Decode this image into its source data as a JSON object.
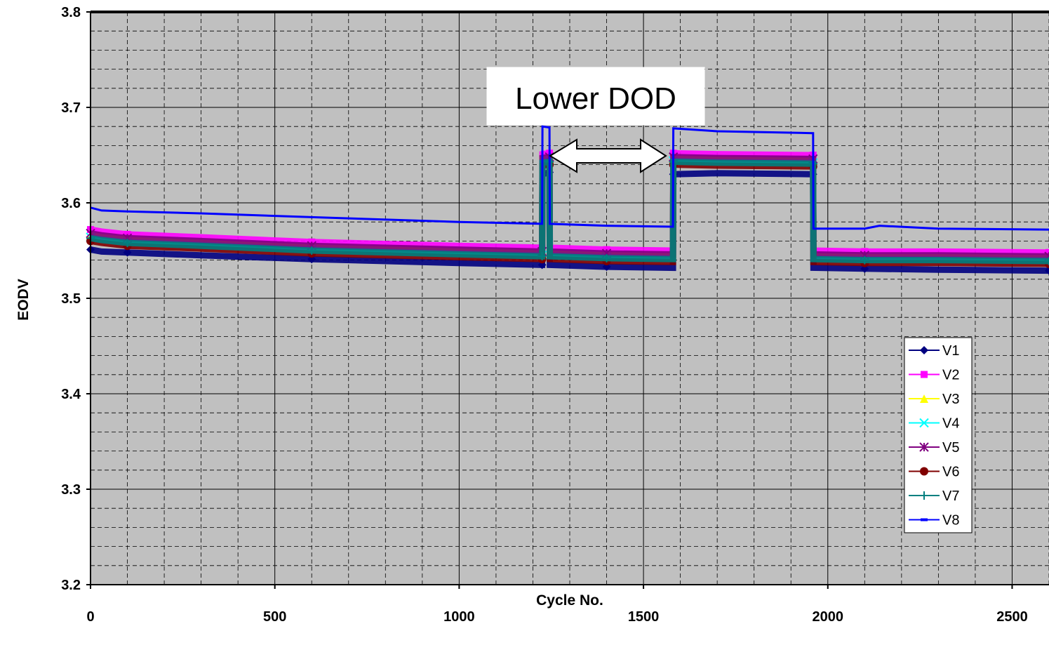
{
  "chart_data": {
    "type": "line",
    "title": "",
    "xlabel": "Cycle No.",
    "ylabel": "EODV",
    "xlim": [
      0,
      2600
    ],
    "ylim": [
      3.2,
      3.8
    ],
    "x_ticks": [
      "0",
      "500",
      "1000",
      "1500",
      "2000",
      "2500"
    ],
    "y_ticks": [
      "3.2",
      "3.3",
      "3.4",
      "3.5",
      "3.6",
      "3.7",
      "3.8"
    ],
    "grid": true,
    "plot_background": "#c0c0c0",
    "legend_position": "right-middle",
    "annotation": {
      "text": "Lower DOD",
      "arrow": "double-headed",
      "x_range": [
        1250,
        1560
      ],
      "y": 3.647
    },
    "series": [
      {
        "name": "V1",
        "color": "#000080",
        "marker": "diamond",
        "points": [
          [
            0,
            3.551
          ],
          [
            30,
            3.549
          ],
          [
            100,
            3.548
          ],
          [
            300,
            3.545
          ],
          [
            600,
            3.541
          ],
          [
            1000,
            3.537
          ],
          [
            1225,
            3.535
          ],
          [
            1226,
            3.63
          ],
          [
            1245,
            3.632
          ],
          [
            1246,
            3.535
          ],
          [
            1400,
            3.533
          ],
          [
            1580,
            3.532
          ],
          [
            1581,
            3.63
          ],
          [
            1700,
            3.631
          ],
          [
            1960,
            3.63
          ],
          [
            1961,
            3.532
          ],
          [
            2100,
            3.531
          ],
          [
            2300,
            3.53
          ],
          [
            2600,
            3.529
          ]
        ]
      },
      {
        "name": "V2",
        "color": "#ff00ff",
        "marker": "square",
        "points": [
          [
            0,
            3.572
          ],
          [
            30,
            3.57
          ],
          [
            100,
            3.567
          ],
          [
            300,
            3.564
          ],
          [
            600,
            3.559
          ],
          [
            1000,
            3.555
          ],
          [
            1225,
            3.553
          ],
          [
            1226,
            3.651
          ],
          [
            1245,
            3.652
          ],
          [
            1246,
            3.553
          ],
          [
            1400,
            3.551
          ],
          [
            1580,
            3.55
          ],
          [
            1581,
            3.652
          ],
          [
            1700,
            3.651
          ],
          [
            1960,
            3.65
          ],
          [
            1961,
            3.55
          ],
          [
            2100,
            3.549
          ],
          [
            2300,
            3.549
          ],
          [
            2600,
            3.548
          ]
        ]
      },
      {
        "name": "V3",
        "color": "#ffff00",
        "marker": "triangle",
        "points": [
          [
            0,
            3.566
          ],
          [
            30,
            3.564
          ],
          [
            100,
            3.561
          ],
          [
            300,
            3.558
          ],
          [
            600,
            3.553
          ],
          [
            1000,
            3.549
          ],
          [
            1225,
            3.547
          ],
          [
            1226,
            3.645
          ],
          [
            1245,
            3.646
          ],
          [
            1246,
            3.547
          ],
          [
            1400,
            3.545
          ],
          [
            1580,
            3.544
          ],
          [
            1581,
            3.646
          ],
          [
            1700,
            3.645
          ],
          [
            1960,
            3.644
          ],
          [
            1961,
            3.544
          ],
          [
            2100,
            3.543
          ],
          [
            2300,
            3.543
          ],
          [
            2600,
            3.542
          ]
        ]
      },
      {
        "name": "V4",
        "color": "#00ffff",
        "marker": "x",
        "points": [
          [
            0,
            3.564
          ],
          [
            30,
            3.562
          ],
          [
            100,
            3.559
          ],
          [
            300,
            3.556
          ],
          [
            600,
            3.551
          ],
          [
            1000,
            3.547
          ],
          [
            1225,
            3.545
          ],
          [
            1226,
            3.643
          ],
          [
            1245,
            3.644
          ],
          [
            1246,
            3.545
          ],
          [
            1400,
            3.543
          ],
          [
            1580,
            3.542
          ],
          [
            1581,
            3.644
          ],
          [
            1700,
            3.643
          ],
          [
            1960,
            3.642
          ],
          [
            1961,
            3.542
          ],
          [
            2100,
            3.541
          ],
          [
            2300,
            3.541
          ],
          [
            2600,
            3.54
          ]
        ]
      },
      {
        "name": "V5",
        "color": "#800080",
        "marker": "star",
        "points": [
          [
            0,
            3.568
          ],
          [
            30,
            3.566
          ],
          [
            100,
            3.563
          ],
          [
            300,
            3.56
          ],
          [
            600,
            3.555
          ],
          [
            1000,
            3.551
          ],
          [
            1225,
            3.549
          ],
          [
            1226,
            3.647
          ],
          [
            1245,
            3.648
          ],
          [
            1246,
            3.549
          ],
          [
            1400,
            3.547
          ],
          [
            1580,
            3.546
          ],
          [
            1581,
            3.648
          ],
          [
            1700,
            3.647
          ],
          [
            1960,
            3.646
          ],
          [
            1961,
            3.546
          ],
          [
            2100,
            3.545
          ],
          [
            2300,
            3.545
          ],
          [
            2600,
            3.544
          ]
        ]
      },
      {
        "name": "V6",
        "color": "#800000",
        "marker": "circle",
        "points": [
          [
            0,
            3.56
          ],
          [
            30,
            3.558
          ],
          [
            100,
            3.555
          ],
          [
            300,
            3.552
          ],
          [
            600,
            3.547
          ],
          [
            1000,
            3.543
          ],
          [
            1225,
            3.541
          ],
          [
            1226,
            3.639
          ],
          [
            1245,
            3.64
          ],
          [
            1246,
            3.541
          ],
          [
            1400,
            3.539
          ],
          [
            1580,
            3.538
          ],
          [
            1581,
            3.64
          ],
          [
            1700,
            3.639
          ],
          [
            1960,
            3.638
          ],
          [
            1961,
            3.538
          ],
          [
            2100,
            3.537
          ],
          [
            2300,
            3.537
          ],
          [
            2600,
            3.536
          ]
        ]
      },
      {
        "name": "V7",
        "color": "#008080",
        "marker": "plus",
        "points": [
          [
            0,
            3.563
          ],
          [
            30,
            3.561
          ],
          [
            100,
            3.558
          ],
          [
            300,
            3.555
          ],
          [
            600,
            3.55
          ],
          [
            1000,
            3.546
          ],
          [
            1225,
            3.544
          ],
          [
            1226,
            3.642
          ],
          [
            1245,
            3.643
          ],
          [
            1246,
            3.544
          ],
          [
            1400,
            3.542
          ],
          [
            1580,
            3.541
          ],
          [
            1581,
            3.643
          ],
          [
            1700,
            3.642
          ],
          [
            1960,
            3.641
          ],
          [
            1961,
            3.541
          ],
          [
            2100,
            3.54
          ],
          [
            2300,
            3.54
          ],
          [
            2600,
            3.539
          ]
        ]
      },
      {
        "name": "V8",
        "color": "#0000ff",
        "marker": "dash",
        "points": [
          [
            0,
            3.595
          ],
          [
            30,
            3.592
          ],
          [
            100,
            3.591
          ],
          [
            300,
            3.589
          ],
          [
            600,
            3.585
          ],
          [
            1000,
            3.58
          ],
          [
            1225,
            3.578
          ],
          [
            1226,
            3.68
          ],
          [
            1245,
            3.679
          ],
          [
            1246,
            3.578
          ],
          [
            1400,
            3.576
          ],
          [
            1580,
            3.575
          ],
          [
            1581,
            3.678
          ],
          [
            1700,
            3.675
          ],
          [
            1960,
            3.673
          ],
          [
            1961,
            3.573
          ],
          [
            2100,
            3.573
          ],
          [
            2140,
            3.576
          ],
          [
            2300,
            3.573
          ],
          [
            2600,
            3.572
          ]
        ]
      }
    ]
  }
}
